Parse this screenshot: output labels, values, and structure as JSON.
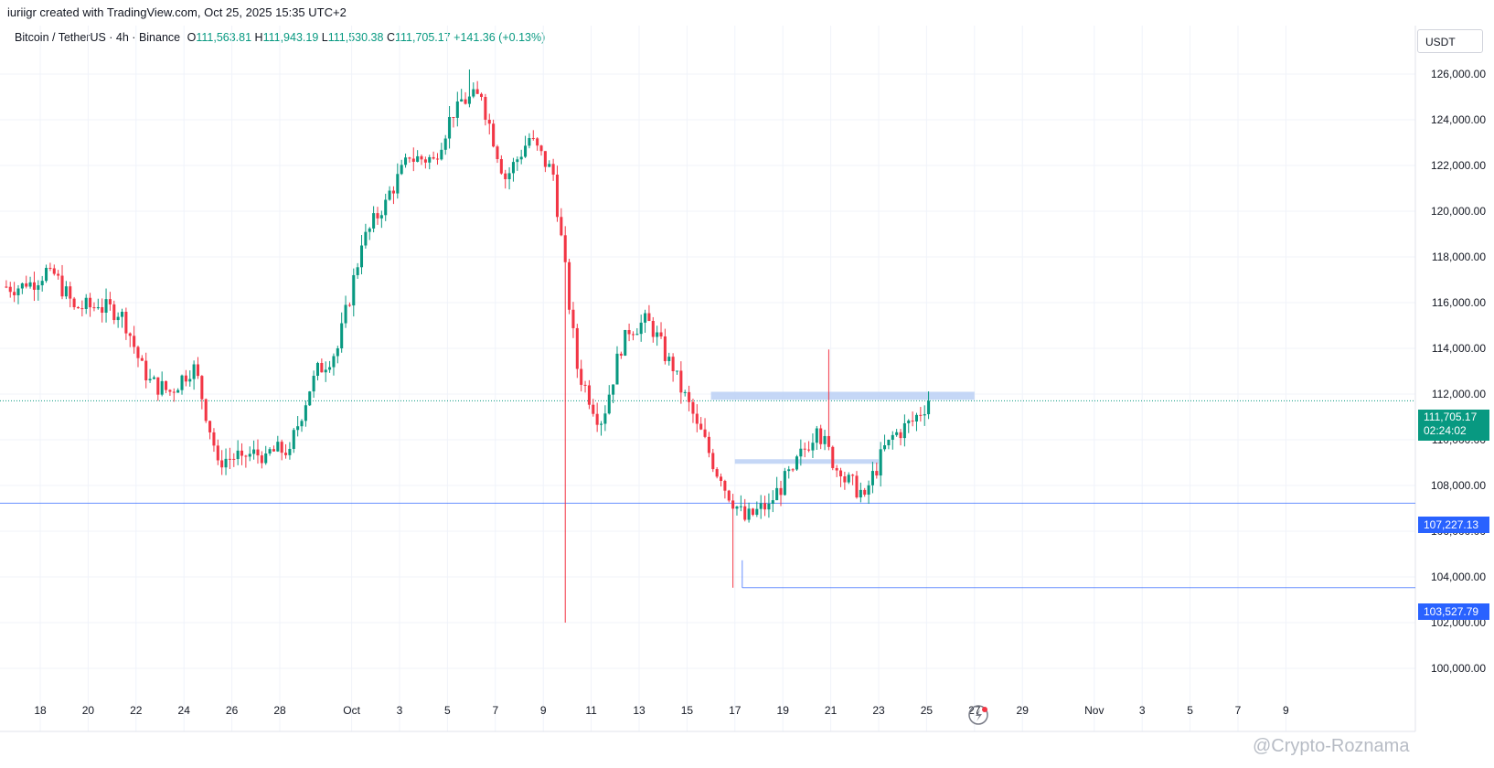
{
  "header": {
    "attribution": "iuriigr created with TradingView.com, Oct 25, 2025 15:35 UTC+2",
    "symbol": "Bitcoin / TetherUS · 4h · Binance",
    "open_label": "O",
    "open": "111,563.81",
    "high_label": "H",
    "high": "111,943.19",
    "low_label": "L",
    "low": "111,530.38",
    "close_label": "C",
    "close": "111,705.17",
    "change": "+141.36 (+0.13%)"
  },
  "axis": {
    "unit": "USDT",
    "price_ticks": [
      "126,000.00",
      "124,000.00",
      "122,000.00",
      "120,000.00",
      "118,000.00",
      "116,000.00",
      "114,000.00",
      "112,000.00",
      "110,000.00",
      "108,000.00",
      "106,000.00",
      "104,000.00",
      "102,000.00",
      "100,000.00"
    ],
    "date_ticks": [
      "18",
      "20",
      "22",
      "24",
      "26",
      "28",
      "Oct",
      "3",
      "5",
      "7",
      "9",
      "11",
      "13",
      "15",
      "17",
      "19",
      "21",
      "23",
      "25",
      "27",
      "29",
      "Nov",
      "3",
      "5",
      "7",
      "9"
    ]
  },
  "tags": {
    "last_price": "111,705.17",
    "countdown": "02:24:02",
    "level_1": "107,227.13",
    "level_2": "103,527.79"
  },
  "watermark": "@Crypto-Roznama",
  "colors": {
    "up": "#089981",
    "down": "#f23645",
    "level": "#2962ff",
    "zone": "#bbd0f5"
  },
  "chart_data": {
    "type": "candlestick",
    "title": "Bitcoin / TetherUS · 4h · Binance",
    "ylim": [
      99500,
      127000
    ],
    "levels": [
      107227.13,
      103527.79
    ],
    "last_price": 111705.17,
    "zones": [
      {
        "from": "Oct 16",
        "to": "Oct 27",
        "low": 111750,
        "high": 112100
      },
      {
        "from": "Oct 17",
        "to": "Oct 23",
        "low": 108950,
        "high": 109150
      }
    ],
    "daily_close_path": [
      {
        "date": "Sep 17",
        "close": 116700
      },
      {
        "date": "Sep 18",
        "close": 117500
      },
      {
        "date": "Sep 19",
        "close": 115800
      },
      {
        "date": "Sep 20",
        "close": 115800
      },
      {
        "date": "Sep 21",
        "close": 115600
      },
      {
        "date": "Sep 22",
        "close": 112600
      },
      {
        "date": "Sep 23",
        "close": 112100
      },
      {
        "date": "Sep 24",
        "close": 113300
      },
      {
        "date": "Sep 25",
        "close": 109100
      },
      {
        "date": "Sep 26",
        "close": 109300
      },
      {
        "date": "Sep 27",
        "close": 109400
      },
      {
        "date": "Sep 28",
        "close": 109600
      },
      {
        "date": "Sep 29",
        "close": 112800
      },
      {
        "date": "Sep 30",
        "close": 114000
      },
      {
        "date": "Oct 1",
        "close": 118500
      },
      {
        "date": "Oct 2",
        "close": 120500
      },
      {
        "date": "Oct 3",
        "close": 122300
      },
      {
        "date": "Oct 4",
        "close": 122300
      },
      {
        "date": "Oct 5",
        "close": 124800
      },
      {
        "date": "Oct 6",
        "close": 125000
      },
      {
        "date": "Oct 7",
        "close": 121400
      },
      {
        "date": "Oct 8",
        "close": 123200
      },
      {
        "date": "Oct 9",
        "close": 121600
      },
      {
        "date": "Oct 10",
        "close": 113100
      },
      {
        "date": "Oct 11",
        "close": 110700
      },
      {
        "date": "Oct 12",
        "close": 114800
      },
      {
        "date": "Oct 13",
        "close": 115200
      },
      {
        "date": "Oct 14",
        "close": 113000
      },
      {
        "date": "Oct 15",
        "close": 110700
      },
      {
        "date": "Oct 16",
        "close": 108200
      },
      {
        "date": "Oct 17",
        "close": 106500
      },
      {
        "date": "Oct 18",
        "close": 107200
      },
      {
        "date": "Oct 19",
        "close": 108700
      },
      {
        "date": "Oct 20",
        "close": 110500
      },
      {
        "date": "Oct 21",
        "close": 108400
      },
      {
        "date": "Oct 22",
        "close": 107600
      },
      {
        "date": "Oct 23",
        "close": 110000
      },
      {
        "date": "Oct 24",
        "close": 110800
      },
      {
        "date": "Oct 25",
        "close": 111705.17
      }
    ],
    "notable_extremes": [
      {
        "date": "Oct 6",
        "high": 126200
      },
      {
        "date": "Oct 10",
        "low": 102000
      },
      {
        "date": "Oct 17",
        "low": 103527.79
      },
      {
        "date": "Oct 21",
        "high": 113950
      }
    ]
  }
}
